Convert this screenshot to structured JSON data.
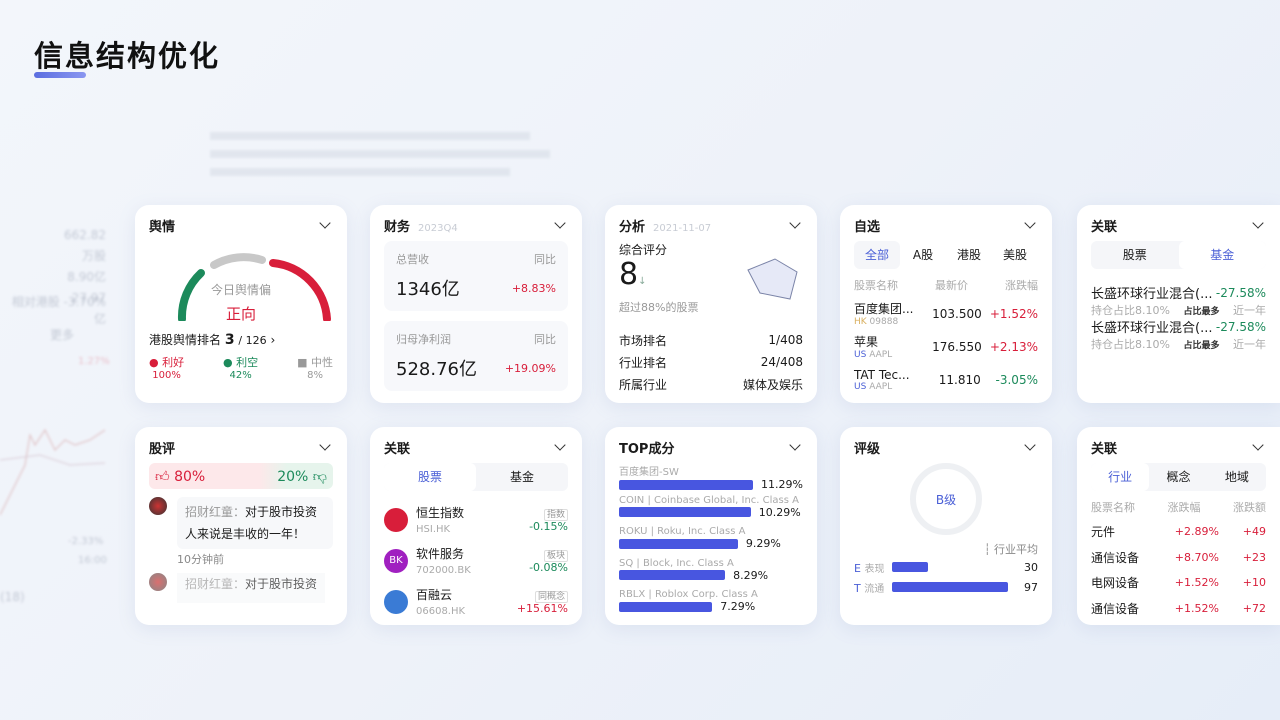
{
  "page": {
    "title": "信息结构优化"
  },
  "background": {
    "left_stats": [
      "662.82万股",
      "8.90亿",
      "27.97亿"
    ],
    "relative": "相对港股 -3.70%",
    "more": "更多",
    "pct_top": "1.27%",
    "pct_bottom": "-2.33%",
    "time": "16:00",
    "count": "(18)"
  },
  "sentiment": {
    "title": "舆情",
    "gauge_label": "今日舆情偏",
    "gauge_value": "正向",
    "rank_label": "港股舆情排名",
    "rank": "3",
    "rank_total": "/ 126",
    "legend": [
      {
        "label": "利好",
        "pct": "100%",
        "color": "#d81e3a"
      },
      {
        "label": "利空",
        "pct": "42%",
        "color": "#1c8a5b"
      },
      {
        "label": "中性",
        "pct": "8%",
        "color": "#bbbbbb"
      }
    ]
  },
  "finance": {
    "title": "财务",
    "period": "2023Q4",
    "items": [
      {
        "label": "总营收",
        "yoy_label": "同比",
        "value": "1346亿",
        "yoy": "+8.83%"
      },
      {
        "label": "归母净利润",
        "yoy_label": "同比",
        "value": "528.76亿",
        "yoy": "+19.09%"
      }
    ]
  },
  "analysis": {
    "title": "分析",
    "date": "2021-11-07",
    "score_label": "综合评分",
    "score": "8",
    "beat": "超过88%的股票",
    "rows": [
      {
        "k": "市场排名",
        "v": "1/408"
      },
      {
        "k": "行业排名",
        "v": "24/408"
      },
      {
        "k": "所属行业",
        "v": "媒体及娱乐"
      }
    ]
  },
  "watchlist": {
    "title": "自选",
    "tabs": [
      "全部",
      "A股",
      "港股",
      "美股"
    ],
    "cols": [
      "股票名称",
      "最新价",
      "涨跌幅"
    ],
    "rows": [
      {
        "name": "百度集团...",
        "mkt": "HK",
        "code": "09888",
        "price": "103.500",
        "chg": "+1.52%",
        "up": true
      },
      {
        "name": "苹果",
        "mkt": "US",
        "code": "AAPL",
        "price": "176.550",
        "chg": "+2.13%",
        "up": true
      },
      {
        "name": "TAT Tec...",
        "mkt": "US",
        "code": "AAPL",
        "price": "11.810",
        "chg": "-3.05%",
        "up": false
      }
    ]
  },
  "related_funds": {
    "title": "关联",
    "tabs": [
      "股票",
      "基金"
    ],
    "rows": [
      {
        "name": "长盛环球行业混合(...",
        "chg": "-27.58%",
        "hold": "持仓占比8.10%",
        "badge": "占比最多",
        "period": "近一年"
      },
      {
        "name": "长盛环球行业混合(...",
        "chg": "-27.58%",
        "hold": "持仓占比8.10%",
        "badge": "占比最多",
        "period": "近一年"
      }
    ]
  },
  "comments": {
    "title": "股评",
    "bull": "80%",
    "bear": "20%",
    "bull_ratio": 0.8,
    "items": [
      {
        "user": "招财红童：",
        "text": "对于股市投资人来说是丰收的一年！",
        "time": "10分钟前"
      },
      {
        "user": "招财红童：",
        "text": "对于股市投资"
      }
    ]
  },
  "related_stocks": {
    "title": "关联",
    "tabs": [
      "股票",
      "基金"
    ],
    "rows": [
      {
        "name": "恒生指数",
        "code": "HSI.HK",
        "tag": "指数",
        "chg": "-0.15%",
        "up": false,
        "logo_color": "#d81e3a"
      },
      {
        "name": "软件服务",
        "code": "702000.BK",
        "tag": "板块",
        "chg": "-0.08%",
        "up": false,
        "logo": "BK",
        "logo_color": "#a020c0"
      },
      {
        "name": "百融云",
        "code": "06608.HK",
        "tag": "同概念",
        "chg": "+15.61%",
        "up": true,
        "logo_color": "#3a7bd5"
      }
    ]
  },
  "top_holdings": {
    "title": "TOP成分",
    "items": [
      {
        "name": "百度集团-SW",
        "pct": "11.29%",
        "value": 11.29
      },
      {
        "name": "COIN | Coinbase Global, Inc. Class A",
        "pct": "10.29%",
        "value": 10.29
      },
      {
        "name": "ROKU | Roku, Inc. Class A",
        "pct": "9.29%",
        "value": 9.29
      },
      {
        "name": "SQ | Block, Inc. Class A",
        "pct": "8.29%",
        "value": 8.29
      },
      {
        "name": "RBLX | Roblox Corp. Class A",
        "pct": "7.29%",
        "value": 7.29
      }
    ]
  },
  "rating": {
    "title": "评级",
    "grade": "B级",
    "avg_label": "行业平均",
    "items": [
      {
        "letter": "E",
        "label": "表现",
        "value": "30",
        "ratio": 0.3
      },
      {
        "letter": "T",
        "label": "流通",
        "value": "97",
        "ratio": 0.97
      }
    ]
  },
  "related_sectors": {
    "title": "关联",
    "tabs": [
      "行业",
      "概念",
      "地域"
    ],
    "cols": [
      "股票名称",
      "涨跌幅",
      "涨跌额"
    ],
    "rows": [
      {
        "name": "元件",
        "pct": "+2.89%",
        "amt": "+49"
      },
      {
        "name": "通信设备",
        "pct": "+8.70%",
        "amt": "+23"
      },
      {
        "name": "电网设备",
        "pct": "+1.52%",
        "amt": "+10"
      },
      {
        "name": "通信设备",
        "pct": "+1.52%",
        "amt": "+72"
      }
    ]
  },
  "colors": {
    "up": "#d81e3a",
    "down": "#1c8a5b",
    "accent": "#4a5fd6",
    "bar": "#4856e0"
  }
}
